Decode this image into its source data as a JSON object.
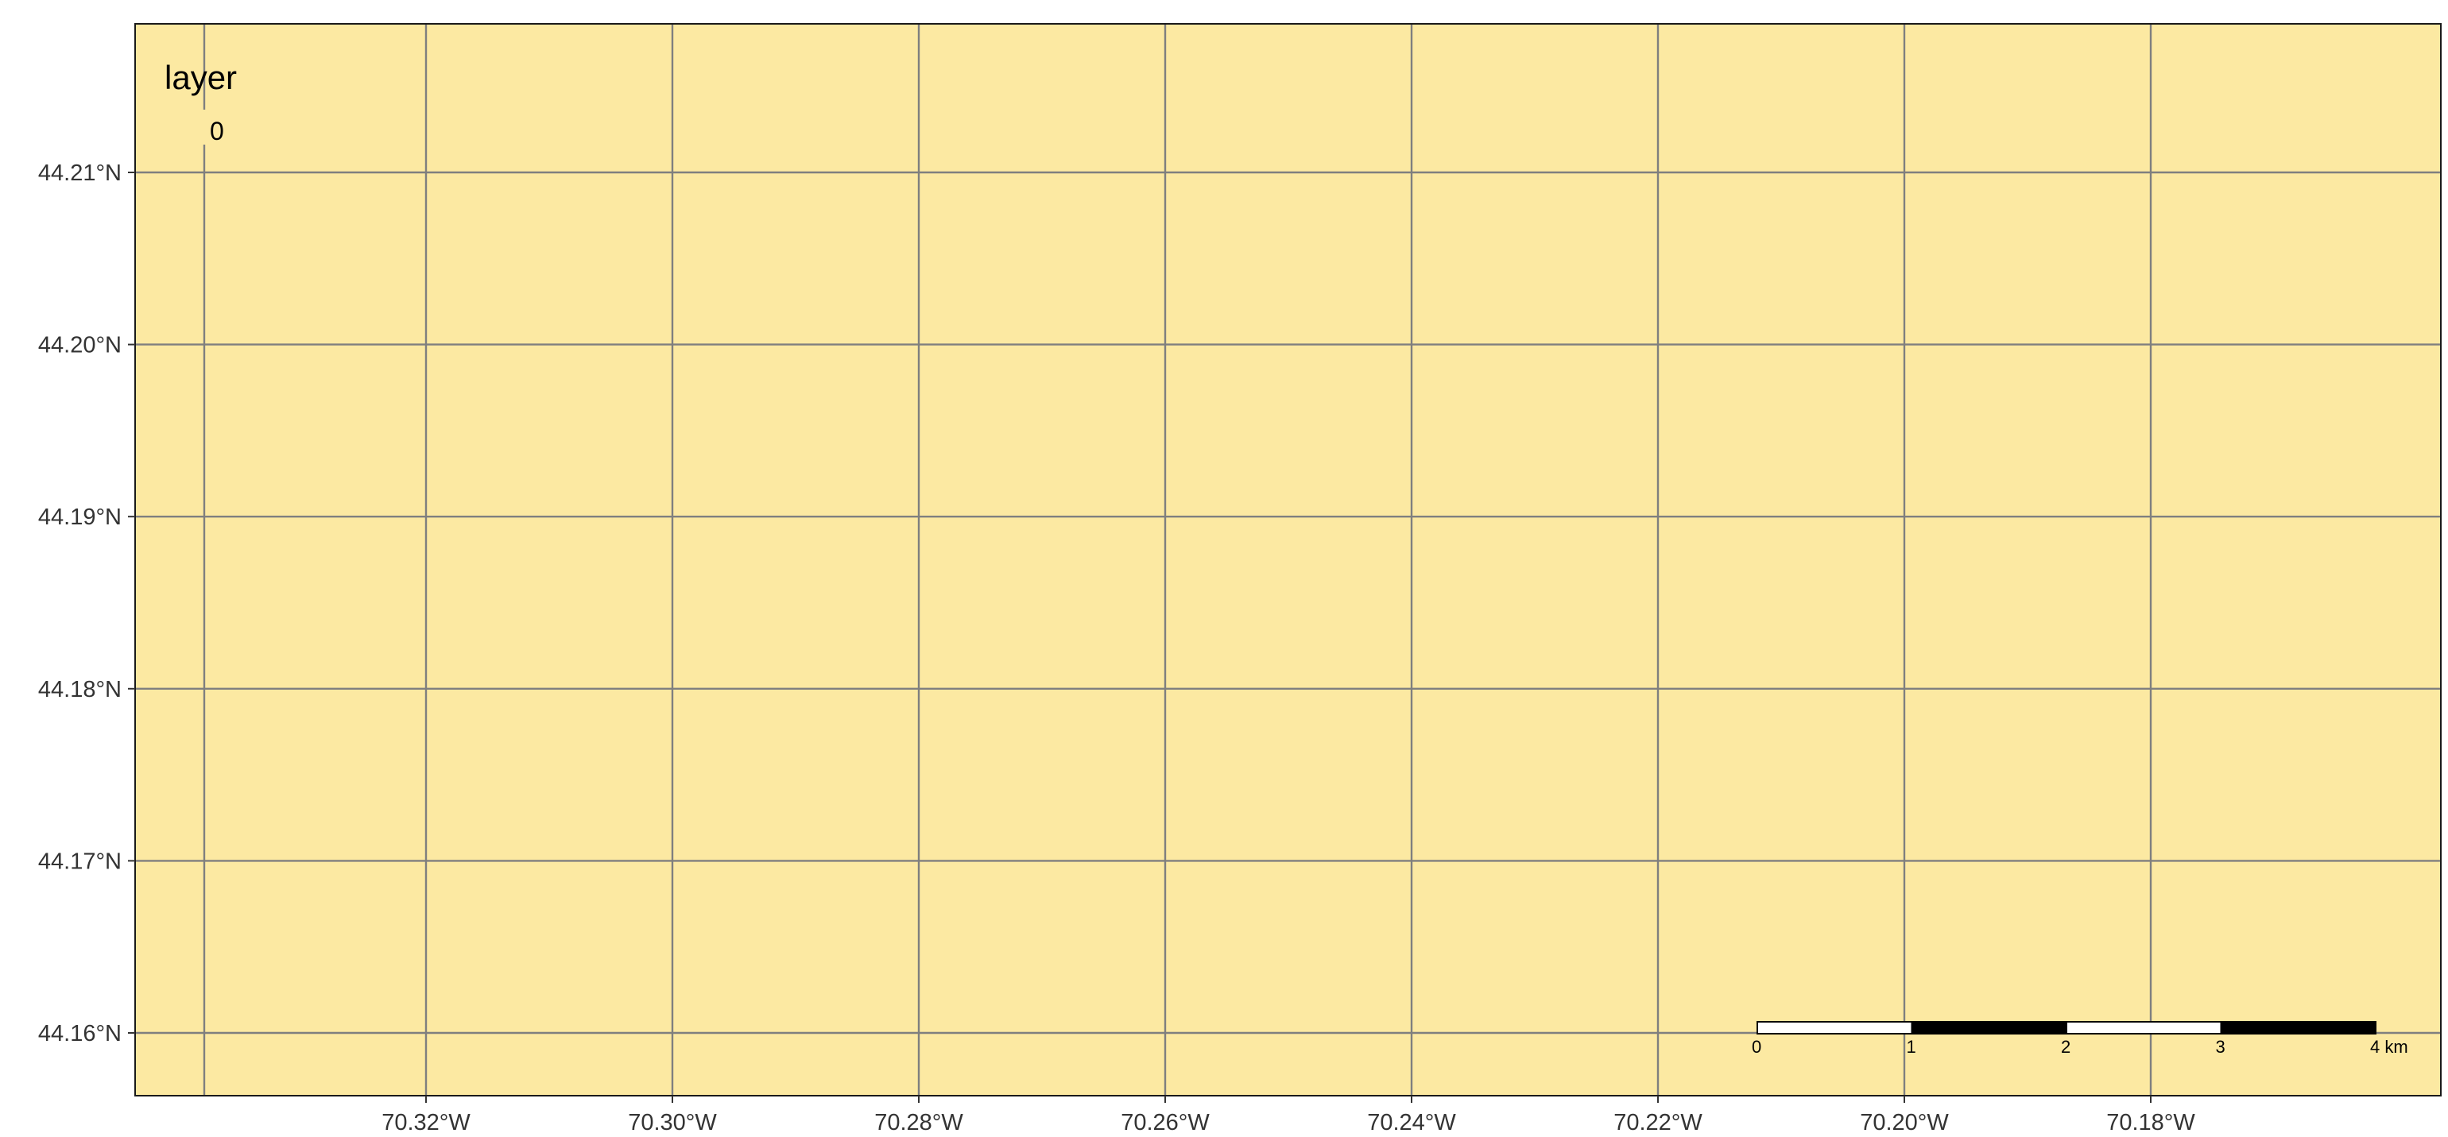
{
  "map": {
    "background_color": "#fce9a2",
    "grid_color": "#7f7f7f",
    "border_color": "#1a1a1a",
    "lon_ticks": [
      {
        "value": -70.32,
        "label": "70.32°W"
      },
      {
        "value": -70.3,
        "label": "70.30°W"
      },
      {
        "value": -70.28,
        "label": "70.28°W"
      },
      {
        "value": -70.26,
        "label": "70.26°W"
      },
      {
        "value": -70.24,
        "label": "70.24°W"
      },
      {
        "value": -70.22,
        "label": "70.22°W"
      },
      {
        "value": -70.2,
        "label": "70.20°W"
      },
      {
        "value": -70.18,
        "label": "70.18°W"
      }
    ],
    "lat_ticks": [
      {
        "value": 44.21,
        "label": "44.21°N"
      },
      {
        "value": 44.2,
        "label": "44.20°N"
      },
      {
        "value": 44.19,
        "label": "44.19°N"
      },
      {
        "value": 44.18,
        "label": "44.18°N"
      },
      {
        "value": 44.17,
        "label": "44.17°N"
      },
      {
        "value": 44.16,
        "label": "44.16°N"
      }
    ],
    "extra_meridian": -70.338,
    "extent": {
      "lon_min": -70.3419,
      "lon_max": -70.1546,
      "lat_min": 44.1563,
      "lat_max": 44.2187
    }
  },
  "legend": {
    "title": "layer",
    "labels": [
      "0"
    ]
  },
  "scale_bar": {
    "labels": [
      "0",
      "1",
      "2",
      "3",
      "4 km"
    ],
    "fill_colors": [
      "#ffffff",
      "#000000",
      "#ffffff",
      "#000000"
    ]
  }
}
